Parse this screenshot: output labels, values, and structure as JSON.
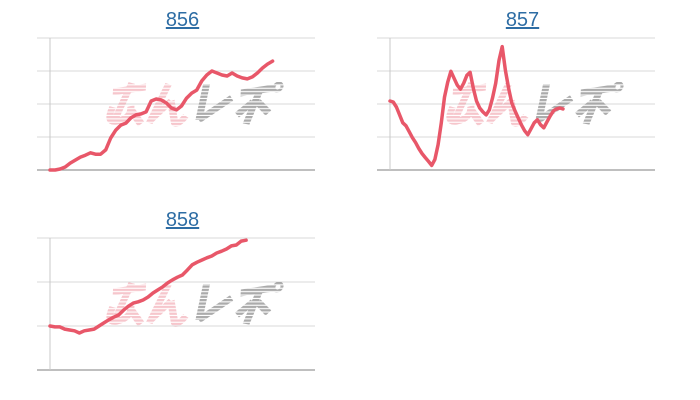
{
  "palette": {
    "background": "#ffffff",
    "line": "#e85769",
    "grid": "#d9d9d9",
    "bottom_axis": "#999999",
    "y_axis": "#c9c9c9",
    "link": "#2e6da4",
    "watermark_pink": "#ef97a2",
    "watermark_gray": "#9d9d9d"
  },
  "watermark": {
    "text": "みんレポ"
  },
  "chart_data": [
    {
      "type": "line",
      "title": "856",
      "xlabel": "",
      "ylabel": "",
      "y_unit": "gridline steps (no axis tick labels shown)",
      "ylim": [
        0,
        4
      ],
      "gridline_count": 5,
      "grid": true,
      "legend": false,
      "x_coverage": 0.84,
      "values": [
        0,
        0,
        0.03,
        0.09,
        0.21,
        0.3,
        0.39,
        0.45,
        0.52,
        0.48,
        0.48,
        0.61,
        0.97,
        1.21,
        1.36,
        1.42,
        1.58,
        1.67,
        1.7,
        1.76,
        2.09,
        2.15,
        2.12,
        2.03,
        1.88,
        1.82,
        1.94,
        2.18,
        2.33,
        2.42,
        2.7,
        2.88,
        3.0,
        2.94,
        2.88,
        2.85,
        2.94,
        2.85,
        2.79,
        2.76,
        2.82,
        2.94,
        3.09,
        3.21,
        3.3
      ]
    },
    {
      "type": "line",
      "title": "857",
      "xlabel": "",
      "ylabel": "",
      "y_unit": "gridline steps (no axis tick labels shown)",
      "ylim": [
        0,
        4
      ],
      "gridline_count": 5,
      "grid": true,
      "legend": false,
      "x_coverage": 0.653,
      "values": [
        2.09,
        2.06,
        1.91,
        1.67,
        1.43,
        1.34,
        1.16,
        0.98,
        0.83,
        0.65,
        0.5,
        0.38,
        0.26,
        0.14,
        0.32,
        0.77,
        1.43,
        2.21,
        2.66,
        2.99,
        2.78,
        2.57,
        2.45,
        2.63,
        2.87,
        2.96,
        2.48,
        2.09,
        1.88,
        1.76,
        1.67,
        1.82,
        2.18,
        2.63,
        3.32,
        3.74,
        3.02,
        2.48,
        2.03,
        1.79,
        1.58,
        1.37,
        1.19,
        1.07,
        1.25,
        1.43,
        1.52,
        1.37,
        1.28,
        1.46,
        1.64,
        1.79,
        1.85,
        1.88,
        1.85
      ]
    },
    {
      "type": "line",
      "title": "858",
      "xlabel": "",
      "ylabel": "",
      "y_unit": "gridline steps (no axis tick labels shown)",
      "ylim": [
        0,
        3
      ],
      "gridline_count": 4,
      "grid": true,
      "legend": false,
      "x_coverage": 0.74,
      "values": [
        1.0,
        0.98,
        0.98,
        0.93,
        0.91,
        0.89,
        0.84,
        0.89,
        0.91,
        0.93,
        1.0,
        1.07,
        1.14,
        1.2,
        1.25,
        1.36,
        1.45,
        1.52,
        1.55,
        1.59,
        1.66,
        1.75,
        1.82,
        1.89,
        1.98,
        2.05,
        2.11,
        2.16,
        2.27,
        2.39,
        2.45,
        2.5,
        2.55,
        2.59,
        2.66,
        2.7,
        2.75,
        2.82,
        2.84,
        2.93,
        2.95
      ]
    }
  ]
}
